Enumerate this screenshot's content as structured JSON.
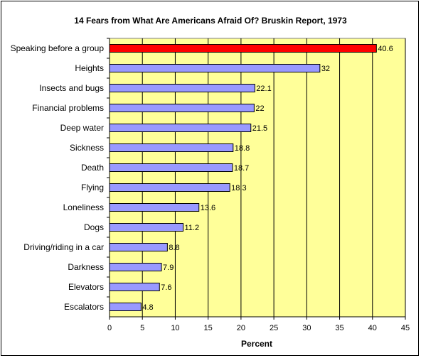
{
  "chart_data": {
    "type": "bar",
    "orientation": "horizontal",
    "title": "14 Fears from What Are Americans Afraid Of? Bruskin Report, 1973",
    "xlabel": "Percent",
    "ylabel": "",
    "xlim": [
      0,
      45
    ],
    "xticks": [
      0,
      5,
      10,
      15,
      20,
      25,
      30,
      35,
      40,
      45
    ],
    "grid": true,
    "legend": "none",
    "categories": [
      "Speaking before a group",
      "Heights",
      "Insects and bugs",
      "Financial problems",
      "Deep water",
      "Sickness",
      "Death",
      "Flying",
      "Loneliness",
      "Dogs",
      "Driving/riding in a car",
      "Darkness",
      "Elevators",
      "Escalators"
    ],
    "values": [
      40.6,
      32,
      22.1,
      22,
      21.5,
      18.8,
      18.7,
      18.3,
      13.6,
      11.2,
      8.8,
      7.9,
      7.6,
      4.8
    ],
    "value_labels": [
      "40.6",
      "32",
      "22.1",
      "22",
      "21.5",
      "18.8",
      "18.7",
      "18.3",
      "13.6",
      "11.2",
      "8.8",
      "7.9",
      "7.6",
      "4.8"
    ],
    "colors": {
      "plot_background": "#ffff99",
      "bar": "#9999ff",
      "highlight_bar": "#ff0000",
      "bar_border": "#000000",
      "gridline": "#000000"
    },
    "highlight_index": 0
  }
}
